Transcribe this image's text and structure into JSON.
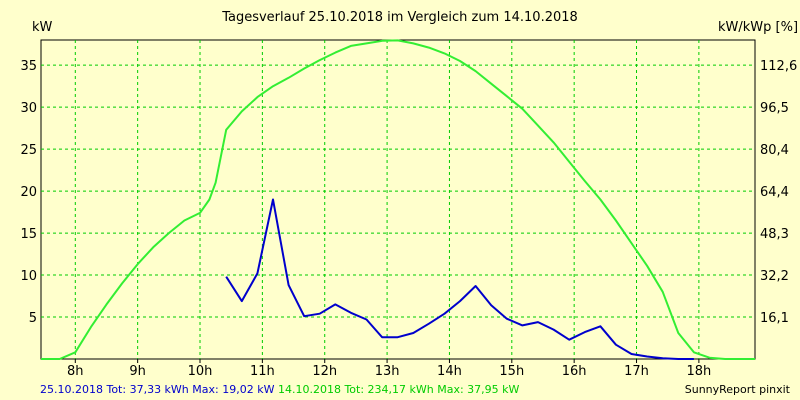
{
  "chart_data": {
    "type": "line",
    "title": "Tagesverlauf 25.10.2018 im Vergleich zum 14.10.2018",
    "ylabel": "kW",
    "ylabel_right": "kW/kWp [%]",
    "x_ticks": [
      "8h",
      "9h",
      "10h",
      "11h",
      "12h",
      "13h",
      "14h",
      "15h",
      "16h",
      "17h",
      "18h"
    ],
    "xlim": [
      7.45,
      18.9
    ],
    "ylim": [
      0,
      38
    ],
    "y_ticks": [
      5,
      10,
      15,
      20,
      25,
      30,
      35
    ],
    "y_ticks_right": [
      "16,1",
      "32,2",
      "48,3",
      "64,4",
      "80,4",
      "96,5",
      "112,6"
    ],
    "grid": true,
    "series": [
      {
        "name": "25.10.2018",
        "color": "#0000cc",
        "x": [
          10.42,
          10.67,
          10.92,
          11.17,
          11.42,
          11.67,
          11.92,
          12.17,
          12.42,
          12.67,
          12.92,
          13.17,
          13.42,
          13.67,
          13.92,
          14.17,
          14.42,
          14.67,
          14.92,
          15.17,
          15.42,
          15.67,
          15.92,
          16.17,
          16.42,
          16.67,
          16.92,
          17.17,
          17.42,
          17.67,
          17.92
        ],
        "y": [
          9.8,
          6.9,
          10.2,
          19.0,
          8.8,
          5.1,
          5.4,
          6.5,
          5.5,
          4.7,
          2.6,
          2.6,
          3.1,
          4.2,
          5.4,
          6.9,
          8.7,
          6.4,
          4.8,
          4.0,
          4.4,
          3.5,
          2.3,
          3.2,
          3.9,
          1.7,
          0.6,
          0.3,
          0.1,
          0.0,
          0.0
        ]
      },
      {
        "name": "14.10.2018",
        "color": "#33ee33",
        "x": [
          7.45,
          7.75,
          8.0,
          8.25,
          8.5,
          8.75,
          9.0,
          9.25,
          9.5,
          9.75,
          10.0,
          10.15,
          10.25,
          10.42,
          10.67,
          10.92,
          11.17,
          11.42,
          11.67,
          11.92,
          12.17,
          12.42,
          12.67,
          12.92,
          13.17,
          13.42,
          13.67,
          13.92,
          14.17,
          14.42,
          14.67,
          14.92,
          15.17,
          15.42,
          15.67,
          15.92,
          16.17,
          16.42,
          16.67,
          16.92,
          17.17,
          17.42,
          17.67,
          17.92,
          18.17,
          18.42,
          18.9
        ],
        "y": [
          0.0,
          0.0,
          0.8,
          3.8,
          6.5,
          9.0,
          11.3,
          13.3,
          15.0,
          16.5,
          17.4,
          19.0,
          21.0,
          27.3,
          29.5,
          31.2,
          32.5,
          33.5,
          34.6,
          35.6,
          36.5,
          37.3,
          37.6,
          37.9,
          37.95,
          37.6,
          37.1,
          36.4,
          35.5,
          34.3,
          32.8,
          31.3,
          29.8,
          27.8,
          25.8,
          23.5,
          21.2,
          19.0,
          16.5,
          13.8,
          11.1,
          8.0,
          3.1,
          0.8,
          0.15,
          0.0,
          0.0
        ]
      }
    ]
  },
  "footer": {
    "series1_text": "25.10.2018 Tot: 37,33 kWh Max: 19,02 kW",
    "series2_text": "14.10.2018 Tot: 234,17 kWh Max: 37,95 kW",
    "credit": "SunnyReport pinxit"
  },
  "colors": {
    "background": "#ffffcc",
    "grid": "#00cc00",
    "series1": "#0000cc",
    "series2": "#33ee33"
  }
}
